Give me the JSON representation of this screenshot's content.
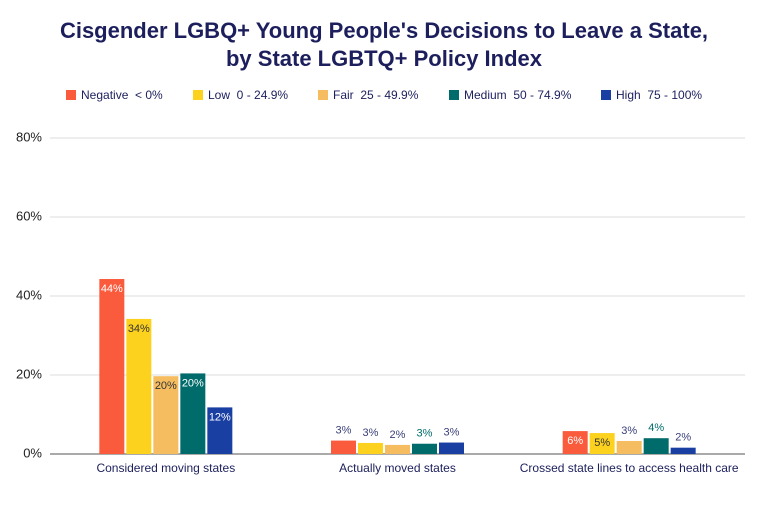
{
  "chart_data": {
    "type": "bar",
    "title": "Cisgender LGBQ+ Young People's Decisions to Leave a State,",
    "subtitle": "by State LGBTQ+ Policy Index",
    "categories": [
      "Considered moving states",
      "Actually moved states",
      "Crossed state lines to access health care"
    ],
    "series": [
      {
        "name": "Negative  < 0%",
        "color": "#fa5b3d",
        "values": [
          44.3,
          3.4,
          5.8
        ],
        "value_labels": [
          "44%",
          "3%",
          "6%"
        ]
      },
      {
        "name": "Low  0 - 24.9%",
        "color": "#fdd21f",
        "values": [
          34.2,
          2.8,
          5.3
        ],
        "value_labels": [
          "34%",
          "3%",
          "5%"
        ]
      },
      {
        "name": "Fair  25 - 49.9%",
        "color": "#f6bd60",
        "values": [
          19.7,
          2.3,
          3.3
        ],
        "value_labels": [
          "20%",
          "2%",
          "3%"
        ]
      },
      {
        "name": "Medium  50 - 74.9%",
        "color": "#006b6b",
        "values": [
          20.4,
          2.6,
          4.0
        ],
        "value_labels": [
          "20%",
          "3%",
          "4%"
        ]
      },
      {
        "name": "High  75 - 100%",
        "color": "#1a3fa3",
        "values": [
          11.8,
          2.9,
          1.6
        ],
        "value_labels": [
          "12%",
          "3%",
          "2%"
        ]
      }
    ],
    "ylim": [
      0,
      80
    ],
    "yticks": [
      {
        "value": 0,
        "label": "0%"
      },
      {
        "value": 20,
        "label": "20%"
      },
      {
        "value": 40,
        "label": "40%"
      },
      {
        "value": 60,
        "label": "60%"
      },
      {
        "value": 80,
        "label": "80%"
      }
    ],
    "grid": true
  }
}
